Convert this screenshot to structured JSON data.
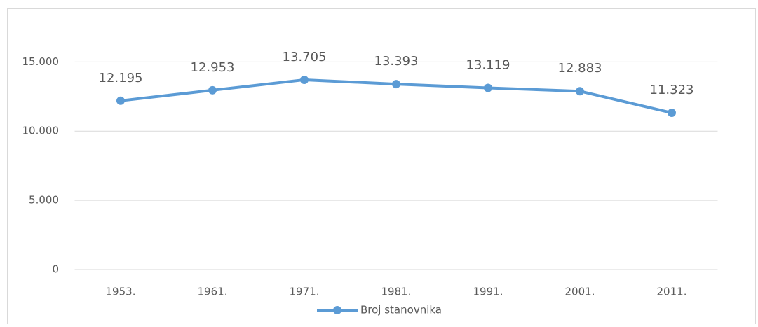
{
  "chart_data": {
    "type": "line",
    "categories": [
      "1953.",
      "1961.",
      "1971.",
      "1981.",
      "1991.",
      "2001.",
      "2011."
    ],
    "series": [
      {
        "name": "Broj stanovnika",
        "color": "#5b9bd5",
        "values": [
          12195,
          12953,
          13705,
          13393,
          13119,
          12883,
          11323
        ],
        "value_labels": [
          "12.195",
          "12.953",
          "13.705",
          "13.393",
          "13.119",
          "12.883",
          "11.323"
        ]
      }
    ],
    "ylim": [
      0,
      18000
    ],
    "yticks": [
      0,
      {
        "value": 5000,
        "label": "5.000"
      },
      {
        "value": 10000,
        "label": "10.000"
      },
      {
        "value": 15000,
        "label": "15.000"
      }
    ],
    "grid": true,
    "legend": "bottom"
  }
}
